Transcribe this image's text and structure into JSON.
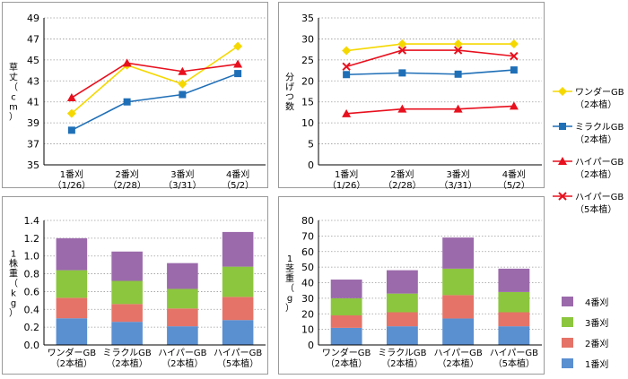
{
  "categories_harvest": [
    "1番刈",
    "2番刈",
    "3番刈",
    "4番刈"
  ],
  "categories_harvest_dates": [
    "（1/26）",
    "（2/28）",
    "（3/31）",
    "（5/2）"
  ],
  "categories_variety": [
    "ワンダーGB",
    "ミラクルGB",
    "ハイパーGB",
    "ハイパーGB"
  ],
  "categories_variety_sub": [
    "（2本植）",
    "（2本植）",
    "（2本植）",
    "（5本植）"
  ],
  "legend_top": [
    {
      "name": "ワンダーGB",
      "sub": "（2本植）",
      "color": "#f5d800",
      "marker": "diamond"
    },
    {
      "name": "ミラクルGB",
      "sub": "（2本植）",
      "color": "#1f6fb7",
      "marker": "square"
    },
    {
      "name": "ハイパーGB",
      "sub": "（2本植）",
      "color": "#e8101e",
      "marker": "triangle"
    },
    {
      "name": "ハイパーGB",
      "sub": "（5本植）",
      "color": "#e8101e",
      "marker": "x"
    }
  ],
  "legend_bottom": [
    {
      "name": "4番刈",
      "color": "#9b6aab"
    },
    {
      "name": "3番刈",
      "color": "#8cc63e"
    },
    {
      "name": "2番刈",
      "color": "#e57367"
    },
    {
      "name": "1番刈",
      "color": "#5a8fd0"
    }
  ],
  "chart_data": [
    {
      "type": "line",
      "ylabel": "草丈（cm）",
      "ylim": [
        35,
        49
      ],
      "yticks": [
        35,
        37,
        39,
        41,
        43,
        45,
        47,
        49
      ],
      "grid": true,
      "series": [
        {
          "name": "ワンダーGB（2本植）",
          "values": [
            39.9,
            44.5,
            42.7,
            46.3
          ]
        },
        {
          "name": "ミラクルGB（2本植）",
          "values": [
            38.3,
            41.0,
            41.7,
            43.7
          ]
        },
        {
          "name": "ハイパーGB（2本植）",
          "values": [
            41.4,
            44.7,
            43.9,
            44.6
          ]
        }
      ]
    },
    {
      "type": "line",
      "ylabel": "分げつ数",
      "ylim": [
        0,
        35
      ],
      "yticks": [
        0,
        5,
        10,
        15,
        20,
        25,
        30,
        35
      ],
      "grid": true,
      "series": [
        {
          "name": "ワンダーGB（2本植）",
          "values": [
            27.2,
            28.8,
            28.8,
            28.8
          ]
        },
        {
          "name": "ミラクルGB（2本植）",
          "values": [
            21.5,
            21.9,
            21.6,
            22.6
          ]
        },
        {
          "name": "ハイパーGB（2本植）",
          "values": [
            12.2,
            13.3,
            13.3,
            14.0
          ]
        },
        {
          "name": "ハイパーGB（5本植）",
          "values": [
            23.4,
            27.3,
            27.3,
            25.9
          ]
        }
      ]
    },
    {
      "type": "bar",
      "stacked": true,
      "ylabel": "1株重（kg）",
      "ylim": [
        0,
        1.4
      ],
      "yticks": [
        "0.0",
        "0.2",
        "0.4",
        "0.6",
        "0.8",
        "1.0",
        "1.2",
        "1.4"
      ],
      "grid": true,
      "series": [
        {
          "name": "1番刈",
          "values": [
            0.3,
            0.26,
            0.21,
            0.28
          ]
        },
        {
          "name": "2番刈",
          "values": [
            0.23,
            0.2,
            0.2,
            0.26
          ]
        },
        {
          "name": "3番刈",
          "values": [
            0.31,
            0.26,
            0.22,
            0.34
          ]
        },
        {
          "name": "4番刈",
          "values": [
            0.36,
            0.33,
            0.29,
            0.39
          ]
        }
      ]
    },
    {
      "type": "bar",
      "stacked": true,
      "ylabel": "1茎重（g）",
      "ylim": [
        0,
        80
      ],
      "yticks": [
        0,
        10,
        20,
        30,
        40,
        50,
        60,
        70,
        80
      ],
      "grid": true,
      "series": [
        {
          "name": "1番刈",
          "values": [
            11,
            12,
            17,
            12
          ]
        },
        {
          "name": "2番刈",
          "values": [
            8,
            9,
            15,
            9
          ]
        },
        {
          "name": "3番刈",
          "values": [
            11,
            12,
            17,
            13
          ]
        },
        {
          "name": "4番刈",
          "values": [
            12,
            15,
            20,
            15
          ]
        }
      ]
    }
  ]
}
